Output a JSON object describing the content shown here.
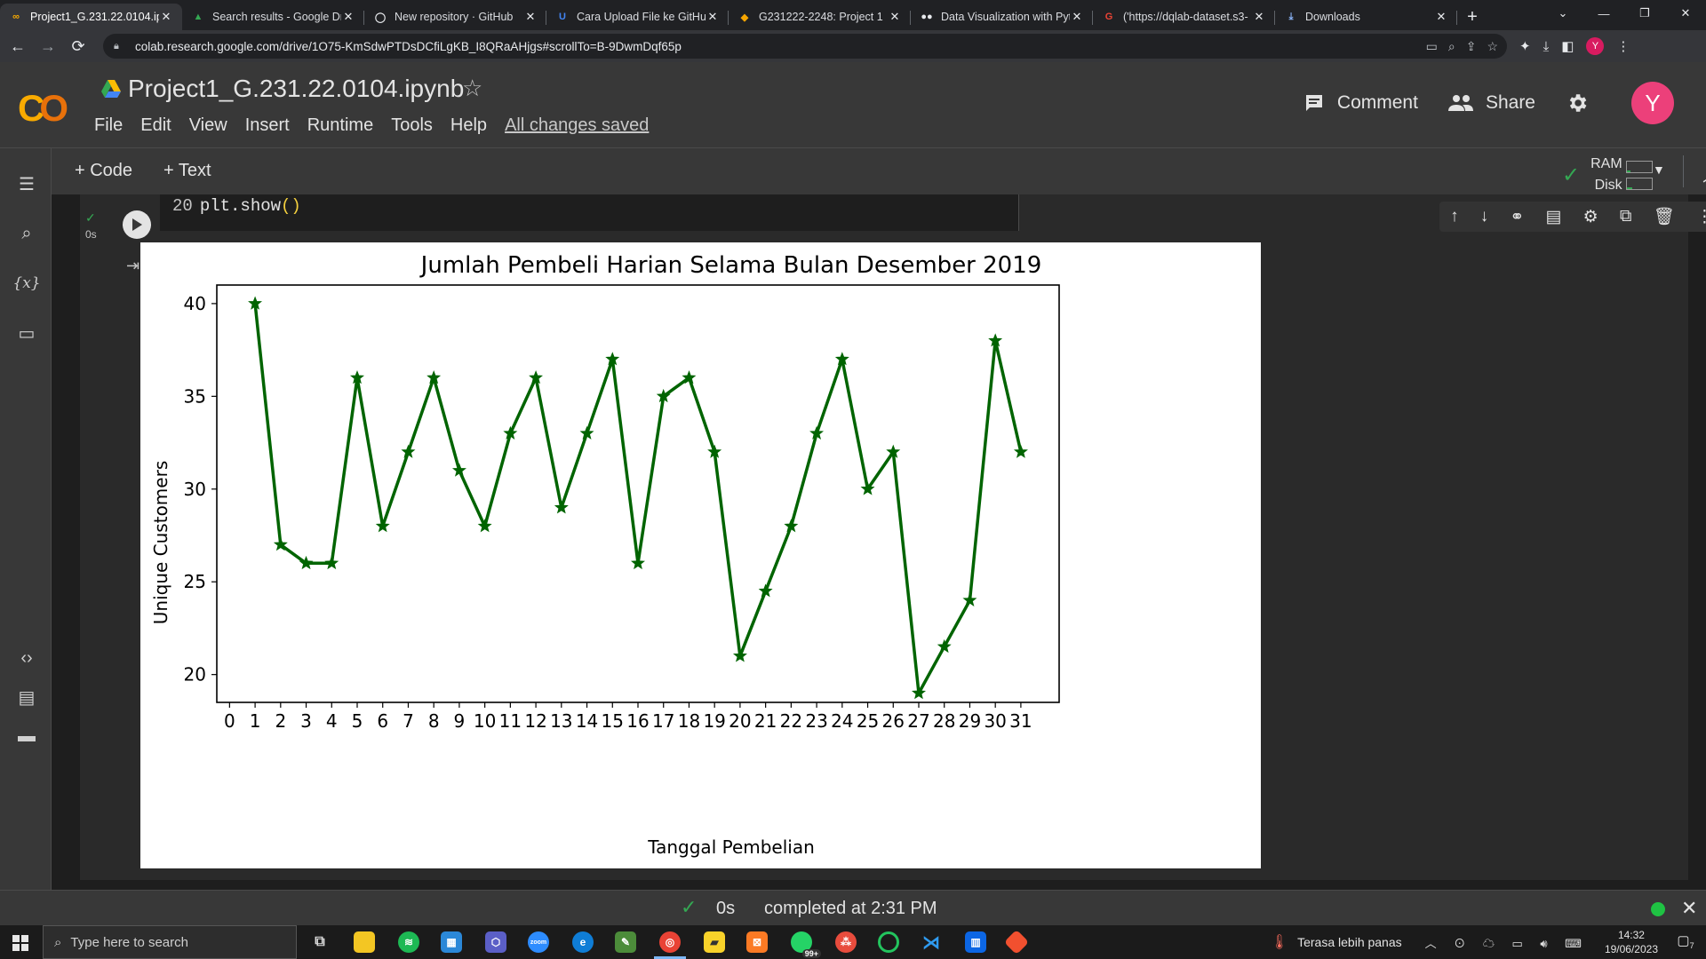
{
  "browser": {
    "tabs": [
      {
        "title": "Project1_G.231.22.0104.ipy",
        "favicon": "colab-icon",
        "active": true
      },
      {
        "title": "Search results - Google Dr",
        "favicon": "google-drive-icon",
        "active": false
      },
      {
        "title": "New repository · GitHub",
        "favicon": "github-icon",
        "active": false
      },
      {
        "title": "Cara Upload File ke GitHu",
        "favicon": "page-icon",
        "active": false
      },
      {
        "title": "G231222-2248: Project 1",
        "favicon": "moodle-icon",
        "active": false
      },
      {
        "title": "Data Visualization with Pyt",
        "favicon": "dqlab-icon",
        "active": false
      },
      {
        "title": "('https://dqlab-dataset.s3-",
        "favicon": "google-icon",
        "active": false
      },
      {
        "title": "Downloads",
        "favicon": "download-icon",
        "active": false
      }
    ],
    "url": "colab.research.google.com/drive/1O75-KmSdwPTDsDCfiLgKB_I8QRaAHjgs#scrollTo=B-9DwmDqf65p",
    "profile_initial": "Y"
  },
  "colab": {
    "logo_text": "CO",
    "notebook_title": "Project1_G.231.22.0104.ipynb",
    "menu": [
      "File",
      "Edit",
      "View",
      "Insert",
      "Runtime",
      "Tools",
      "Help"
    ],
    "save_status": "All changes saved",
    "comment_label": "Comment",
    "share_label": "Share",
    "avatar_initial": "Y",
    "add_code_label": "+ Code",
    "add_text_label": "+ Text",
    "ram_label": "RAM",
    "disk_label": "Disk"
  },
  "cell": {
    "exec_time": "0s",
    "line_number": "20",
    "code_text": "plt.show",
    "code_parens": "()"
  },
  "status": {
    "exec_time": "0s",
    "message": "completed at 2:31 PM"
  },
  "taskbar": {
    "search_placeholder": "Type here to search",
    "weather_text": "Terasa lebih panas",
    "time": "14:32",
    "date": "19/06/2023",
    "notification_count": "7",
    "whatsapp_badge": "99+"
  },
  "chart_data": {
    "type": "line",
    "title": "Jumlah Pembeli Harian Selama Bulan Desember 2019",
    "xlabel": "Tanggal Pembelian",
    "ylabel": "Unique Customers",
    "x": [
      1,
      2,
      3,
      4,
      5,
      6,
      7,
      8,
      9,
      10,
      11,
      12,
      13,
      14,
      15,
      16,
      17,
      18,
      19,
      20,
      21,
      22,
      23,
      24,
      25,
      26,
      27,
      28,
      29,
      30,
      31
    ],
    "series": [
      {
        "name": "",
        "color": "#006400",
        "marker": "star",
        "values": [
          40,
          27,
          26,
          26,
          36,
          28,
          32,
          36,
          31,
          28,
          33,
          36,
          29,
          33,
          37,
          26,
          35,
          36,
          32,
          21,
          24.5,
          28,
          33,
          37,
          30,
          32,
          19,
          21.5,
          24,
          38,
          32
        ]
      }
    ],
    "xticks": [
      0,
      1,
      2,
      3,
      4,
      5,
      6,
      7,
      8,
      9,
      10,
      11,
      12,
      13,
      14,
      15,
      16,
      17,
      18,
      19,
      20,
      21,
      22,
      23,
      24,
      25,
      26,
      27,
      28,
      29,
      30,
      31
    ],
    "yticks": [
      20,
      25,
      30,
      35,
      40
    ],
    "xlim": [
      -0.5,
      32.5
    ],
    "ylim": [
      18.5,
      41
    ],
    "grid": false,
    "legend": "none"
  }
}
